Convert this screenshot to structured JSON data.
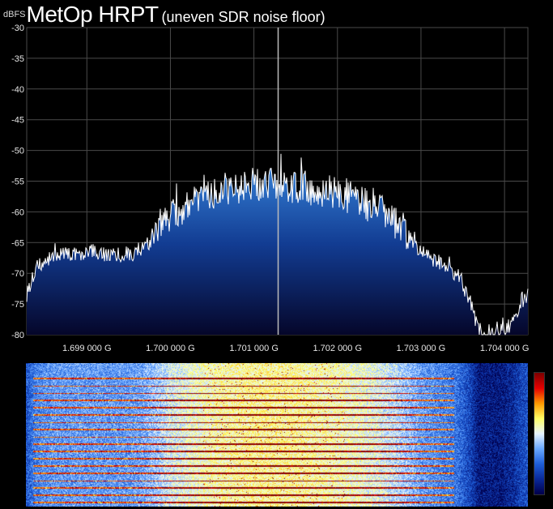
{
  "header": {
    "unit_label": "dBFS",
    "title": "MetOp HRPT",
    "subtitle": "(uneven SDR noise floor)"
  },
  "colors": {
    "background": "#000000",
    "grid": "#4a4a4a",
    "trace": "#ffffff",
    "fill_top": "#3a8ae0",
    "fill_bottom": "#05062a",
    "marker": "#bbbbbb"
  },
  "chart_data": {
    "type": "area",
    "ylabel": "dBFS",
    "ylim": [
      -80,
      -30
    ],
    "yticks": [
      "-30",
      "-35",
      "-40",
      "-45",
      "-50",
      "-55",
      "-60",
      "-65",
      "-70",
      "-75",
      "-80"
    ],
    "xlim": [
      1.69828,
      1.70428
    ],
    "xticks": [
      {
        "value": 1.699,
        "label": "1.699 000 G"
      },
      {
        "value": 1.7,
        "label": "1.700 000 G"
      },
      {
        "value": 1.701,
        "label": "1.701 000 G"
      },
      {
        "value": 1.702,
        "label": "1.702 000 G"
      },
      {
        "value": 1.703,
        "label": "1.703 000 G"
      },
      {
        "value": 1.704,
        "label": "1.704 000 G"
      }
    ],
    "marker_frequency": 1.70129,
    "series": [
      {
        "x": [
          1.69828,
          1.6984,
          1.6986,
          1.6988,
          1.699,
          1.6992,
          1.6994,
          1.6996,
          1.69975,
          1.6999,
          1.7,
          1.7002,
          1.7004,
          1.7006,
          1.7008,
          1.701,
          1.7012,
          1.7014,
          1.7016,
          1.7018,
          1.702,
          1.7022,
          1.7024,
          1.7026,
          1.7028,
          1.703,
          1.70315,
          1.7033,
          1.70345,
          1.7036,
          1.7037,
          1.7038,
          1.70395,
          1.7041,
          1.7042,
          1.70428
        ],
        "values": [
          -73.5,
          -69.0,
          -67.2,
          -67.0,
          -66.8,
          -67.0,
          -67.2,
          -66.8,
          -65.0,
          -62.5,
          -60.5,
          -59.0,
          -57.5,
          -56.5,
          -56.0,
          -55.5,
          -55.5,
          -55.7,
          -56.0,
          -56.5,
          -57.0,
          -58.0,
          -59.0,
          -60.5,
          -63.0,
          -66.5,
          -68.0,
          -69.0,
          -70.5,
          -75.0,
          -80.0,
          -80.0,
          -80.0,
          -78.0,
          -75.0,
          -73.5
        ]
      }
    ]
  },
  "waterfall": {
    "colormap": [
      "#00004d",
      "#0a2a9a",
      "#1f5fd8",
      "#6aa8ff",
      "#e8f4ff",
      "#ffff66",
      "#ff9900",
      "#e60000",
      "#800000"
    ]
  }
}
